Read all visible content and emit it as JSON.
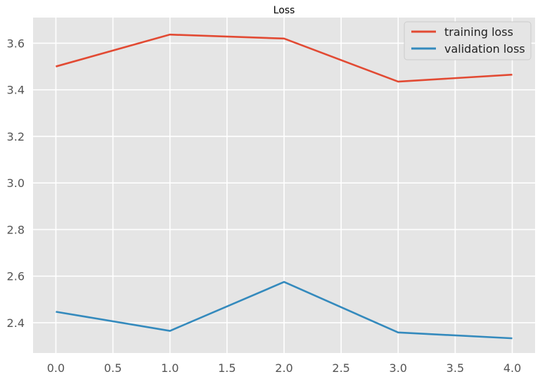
{
  "chart_data": {
    "type": "line",
    "title": "Loss",
    "xlabel": "",
    "ylabel": "",
    "x": [
      0,
      1,
      2,
      3,
      4
    ],
    "series": [
      {
        "name": "training loss",
        "color": "#E24A33",
        "values": [
          3.5,
          3.637,
          3.62,
          3.435,
          3.465
        ]
      },
      {
        "name": "validation loss",
        "color": "#348ABD",
        "values": [
          2.447,
          2.365,
          2.575,
          2.358,
          2.333
        ]
      }
    ],
    "xlim": [
      -0.2,
      4.2
    ],
    "ylim": [
      2.27,
      3.71
    ],
    "xticks": [
      0.0,
      0.5,
      1.0,
      1.5,
      2.0,
      2.5,
      3.0,
      3.5,
      4.0
    ],
    "yticks": [
      2.4,
      2.6,
      2.8,
      3.0,
      3.2,
      3.4,
      3.6
    ],
    "xtick_labels": [
      "0.0",
      "0.5",
      "1.0",
      "1.5",
      "2.0",
      "2.5",
      "3.0",
      "3.5",
      "4.0"
    ],
    "ytick_labels": [
      "2.4",
      "2.6",
      "2.8",
      "3.0",
      "3.2",
      "3.4",
      "3.6"
    ],
    "grid": true,
    "legend": "top-right",
    "style": {
      "background": "#E5E5E5",
      "grid_color": "#ffffff"
    }
  }
}
